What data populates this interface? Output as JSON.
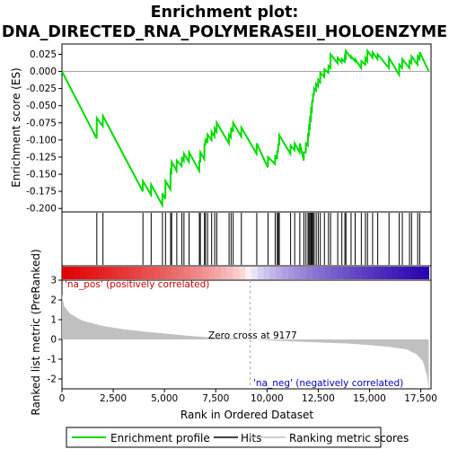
{
  "chart_data": {
    "type": "line",
    "title_line1": "Enrichment plot:",
    "title_line2": "DNA_DIRECTED_RNA_POLYMERASEII_HOLOENZYME",
    "xlabel": "Rank in Ordered Dataset",
    "ylabel_top": "Enrichment score (ES)",
    "ylabel_bottom": "Ranked list metric (PreRanked)",
    "xlim": [
      0,
      18000
    ],
    "x_ticks": [
      0,
      2500,
      5000,
      7500,
      10000,
      12500,
      15000,
      17500
    ],
    "x_tick_labels": [
      "0",
      "2,500",
      "5,000",
      "7,500",
      "10,000",
      "12,500",
      "15,000",
      "17,500"
    ],
    "es_ylim": [
      -0.205,
      0.04
    ],
    "es_ticks": [
      0.025,
      0.0,
      -0.025,
      -0.05,
      -0.075,
      -0.1,
      -0.125,
      -0.15,
      -0.175,
      -0.2
    ],
    "es_tick_labels": [
      "0.025",
      "0.000",
      "-0.025",
      "-0.050",
      "-0.075",
      "-0.100",
      "-0.125",
      "-0.150",
      "-0.175",
      "-0.200"
    ],
    "metric_ylim": [
      -2.5,
      3
    ],
    "metric_ticks": [
      3,
      2,
      1,
      0,
      -1,
      -2
    ],
    "metric_tick_labels": [
      "3",
      "2",
      "1",
      "0",
      "-1",
      "-2"
    ],
    "zero_cross_label": "Zero cross at 9177",
    "zero_cross": 9177,
    "pos_label": "'na_pos' (positively correlated)",
    "neg_label": "'na_neg' (negatively correlated)",
    "max_rank": 17890,
    "hits": [
      1700,
      2000,
      3950,
      4350,
      4900,
      5050,
      5300,
      5350,
      5600,
      5850,
      5950,
      6200,
      6700,
      6750,
      6950,
      7000,
      7100,
      7300,
      7450,
      7550,
      8150,
      8250,
      8350,
      8750,
      9500,
      10050,
      10400,
      10500,
      10550,
      10600,
      11150,
      11350,
      11600,
      11800,
      11900,
      12000,
      12050,
      12100,
      12150,
      12200,
      12250,
      12300,
      12400,
      12500,
      12600,
      12800,
      13000,
      13100,
      13450,
      13650,
      13800,
      13850,
      14100,
      14300,
      14600,
      14800,
      14900,
      15150,
      15400,
      15950,
      16450,
      16600,
      16950,
      17050,
      17350,
      17450
    ],
    "es_curve": [
      [
        0,
        0.0
      ],
      [
        1690,
        -0.098
      ],
      [
        1700,
        -0.068
      ],
      [
        1990,
        -0.08
      ],
      [
        2000,
        -0.065
      ],
      [
        3940,
        -0.175
      ],
      [
        3950,
        -0.16
      ],
      [
        4340,
        -0.18
      ],
      [
        4350,
        -0.165
      ],
      [
        4890,
        -0.195
      ],
      [
        4900,
        -0.178
      ],
      [
        5040,
        -0.186
      ],
      [
        5050,
        -0.16
      ],
      [
        5290,
        -0.172
      ],
      [
        5300,
        -0.145
      ],
      [
        5340,
        -0.147
      ],
      [
        5350,
        -0.132
      ],
      [
        5590,
        -0.145
      ],
      [
        5600,
        -0.13
      ],
      [
        5840,
        -0.138
      ],
      [
        5850,
        -0.125
      ],
      [
        5940,
        -0.13
      ],
      [
        5950,
        -0.12
      ],
      [
        6190,
        -0.132
      ],
      [
        6200,
        -0.118
      ],
      [
        6690,
        -0.145
      ],
      [
        6700,
        -0.13
      ],
      [
        6740,
        -0.133
      ],
      [
        6750,
        -0.118
      ],
      [
        6940,
        -0.128
      ],
      [
        6950,
        -0.105
      ],
      [
        6990,
        -0.108
      ],
      [
        7000,
        -0.098
      ],
      [
        7090,
        -0.104
      ],
      [
        7100,
        -0.092
      ],
      [
        7290,
        -0.1
      ],
      [
        7300,
        -0.088
      ],
      [
        7440,
        -0.095
      ],
      [
        7450,
        -0.083
      ],
      [
        7540,
        -0.088
      ],
      [
        7550,
        -0.075
      ],
      [
        8140,
        -0.105
      ],
      [
        8150,
        -0.092
      ],
      [
        8240,
        -0.096
      ],
      [
        8250,
        -0.082
      ],
      [
        8340,
        -0.088
      ],
      [
        8350,
        -0.075
      ],
      [
        8740,
        -0.095
      ],
      [
        8750,
        -0.082
      ],
      [
        9490,
        -0.12
      ],
      [
        9500,
        -0.105
      ],
      [
        10040,
        -0.14
      ],
      [
        10050,
        -0.125
      ],
      [
        10390,
        -0.135
      ],
      [
        10400,
        -0.122
      ],
      [
        10490,
        -0.128
      ],
      [
        10500,
        -0.115
      ],
      [
        10540,
        -0.118
      ],
      [
        10550,
        -0.105
      ],
      [
        10590,
        -0.108
      ],
      [
        10600,
        -0.093
      ],
      [
        11140,
        -0.12
      ],
      [
        11150,
        -0.108
      ],
      [
        11340,
        -0.115
      ],
      [
        11350,
        -0.105
      ],
      [
        11590,
        -0.118
      ],
      [
        11600,
        -0.105
      ],
      [
        11790,
        -0.13
      ],
      [
        11800,
        -0.118
      ],
      [
        11890,
        -0.118
      ],
      [
        11900,
        -0.105
      ],
      [
        11990,
        -0.108
      ],
      [
        12000,
        -0.092
      ],
      [
        12040,
        -0.093
      ],
      [
        12050,
        -0.08
      ],
      [
        12090,
        -0.082
      ],
      [
        12100,
        -0.068
      ],
      [
        12140,
        -0.07
      ],
      [
        12150,
        -0.055
      ],
      [
        12190,
        -0.057
      ],
      [
        12200,
        -0.042
      ],
      [
        12240,
        -0.045
      ],
      [
        12250,
        -0.032
      ],
      [
        12290,
        -0.035
      ],
      [
        12300,
        -0.025
      ],
      [
        12390,
        -0.028
      ],
      [
        12400,
        -0.018
      ],
      [
        12490,
        -0.022
      ],
      [
        12500,
        -0.012
      ],
      [
        12590,
        -0.016
      ],
      [
        12600,
        -0.002
      ],
      [
        12790,
        -0.008
      ],
      [
        12800,
        0.003
      ],
      [
        12990,
        -0.002
      ],
      [
        13000,
        0.008
      ],
      [
        13090,
        0.005
      ],
      [
        13100,
        0.025
      ],
      [
        13440,
        0.012
      ],
      [
        13450,
        0.02
      ],
      [
        13640,
        0.013
      ],
      [
        13650,
        0.018
      ],
      [
        13790,
        0.014
      ],
      [
        13800,
        0.022
      ],
      [
        13840,
        0.02
      ],
      [
        13850,
        0.03
      ],
      [
        14090,
        0.02
      ],
      [
        14100,
        0.022
      ],
      [
        14290,
        0.015
      ],
      [
        14300,
        0.018
      ],
      [
        14590,
        0.005
      ],
      [
        14600,
        0.015
      ],
      [
        14790,
        0.01
      ],
      [
        14800,
        0.02
      ],
      [
        14890,
        0.015
      ],
      [
        14900,
        0.03
      ],
      [
        15140,
        0.02
      ],
      [
        15150,
        0.028
      ],
      [
        15390,
        0.018
      ],
      [
        15400,
        0.025
      ],
      [
        15940,
        0.005
      ],
      [
        15950,
        0.02
      ],
      [
        16440,
        -0.005
      ],
      [
        16450,
        0.01
      ],
      [
        16590,
        0.005
      ],
      [
        16600,
        0.018
      ],
      [
        16940,
        0.005
      ],
      [
        16950,
        0.015
      ],
      [
        17040,
        0.012
      ],
      [
        17050,
        0.022
      ],
      [
        17340,
        0.01
      ],
      [
        17350,
        0.022
      ],
      [
        17440,
        0.018
      ],
      [
        17450,
        0.028
      ],
      [
        17890,
        0.0
      ]
    ],
    "metric_curve": [
      [
        0,
        2.3
      ],
      [
        100,
        1.7
      ],
      [
        400,
        1.3
      ],
      [
        1000,
        0.95
      ],
      [
        2000,
        0.68
      ],
      [
        3000,
        0.52
      ],
      [
        4000,
        0.4
      ],
      [
        5000,
        0.3
      ],
      [
        6000,
        0.2
      ],
      [
        7000,
        0.12
      ],
      [
        8000,
        0.06
      ],
      [
        9177,
        0.0
      ],
      [
        10000,
        -0.04
      ],
      [
        11000,
        -0.09
      ],
      [
        12000,
        -0.13
      ],
      [
        13000,
        -0.17
      ],
      [
        14000,
        -0.21
      ],
      [
        15000,
        -0.28
      ],
      [
        16000,
        -0.38
      ],
      [
        16800,
        -0.5
      ],
      [
        17300,
        -0.75
      ],
      [
        17600,
        -1.1
      ],
      [
        17800,
        -1.8
      ],
      [
        17890,
        -2.5
      ]
    ],
    "legend": [
      "Enrichment profile",
      "Hits",
      "Ranking metric scores"
    ],
    "colors": {
      "es_line": "#00dd00",
      "hits": "#000000",
      "metric_fill": "#c0c0c0",
      "pos_text": "#cc0000",
      "neg_text": "#0000cc",
      "zero_line": "#aaaaaa",
      "bar_red": "#e00000",
      "bar_blue": "#2a00b0"
    }
  }
}
